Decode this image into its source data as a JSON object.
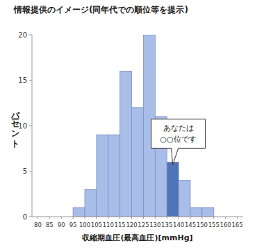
{
  "chart_data": {
    "type": "histogram",
    "title": "情報提供のイメージ(同年代での順位等を提示)",
    "x_label": "収縮期血圧(最高血圧)[mmHg]",
    "y_label": "パーセント",
    "bins": [
      80,
      85,
      90,
      95,
      100,
      105,
      110,
      115,
      120,
      125,
      130,
      135,
      140,
      145,
      150,
      155,
      160,
      165
    ],
    "values": [
      0,
      0,
      0,
      1,
      3,
      9,
      9,
      16,
      12,
      20,
      11,
      6,
      4,
      1,
      1,
      0,
      0
    ],
    "colors": [
      "#a9bde9",
      "#a9bde9",
      "#a9bde9",
      "#a9bde9",
      "#a9bde9",
      "#a9bde9",
      "#a9bde9",
      "#a9bde9",
      "#a9bde9",
      "#a9bde9",
      "#a9bde9",
      "#4f74b8",
      "#a9bde9",
      "#a9bde9",
      "#a9bde9",
      "#a9bde9",
      "#a9bde9"
    ],
    "xlim": [
      77.5,
      167.5
    ],
    "xticks": [
      80,
      85,
      90,
      95,
      100,
      105,
      110,
      115,
      120,
      125,
      130,
      135,
      140,
      145,
      150,
      155,
      160,
      165
    ],
    "ylim": [
      0,
      20
    ],
    "yticks": [
      0,
      5,
      10,
      15,
      20
    ],
    "grid": false,
    "annotations": [
      "あなたは",
      "○○位です"
    ]
  }
}
